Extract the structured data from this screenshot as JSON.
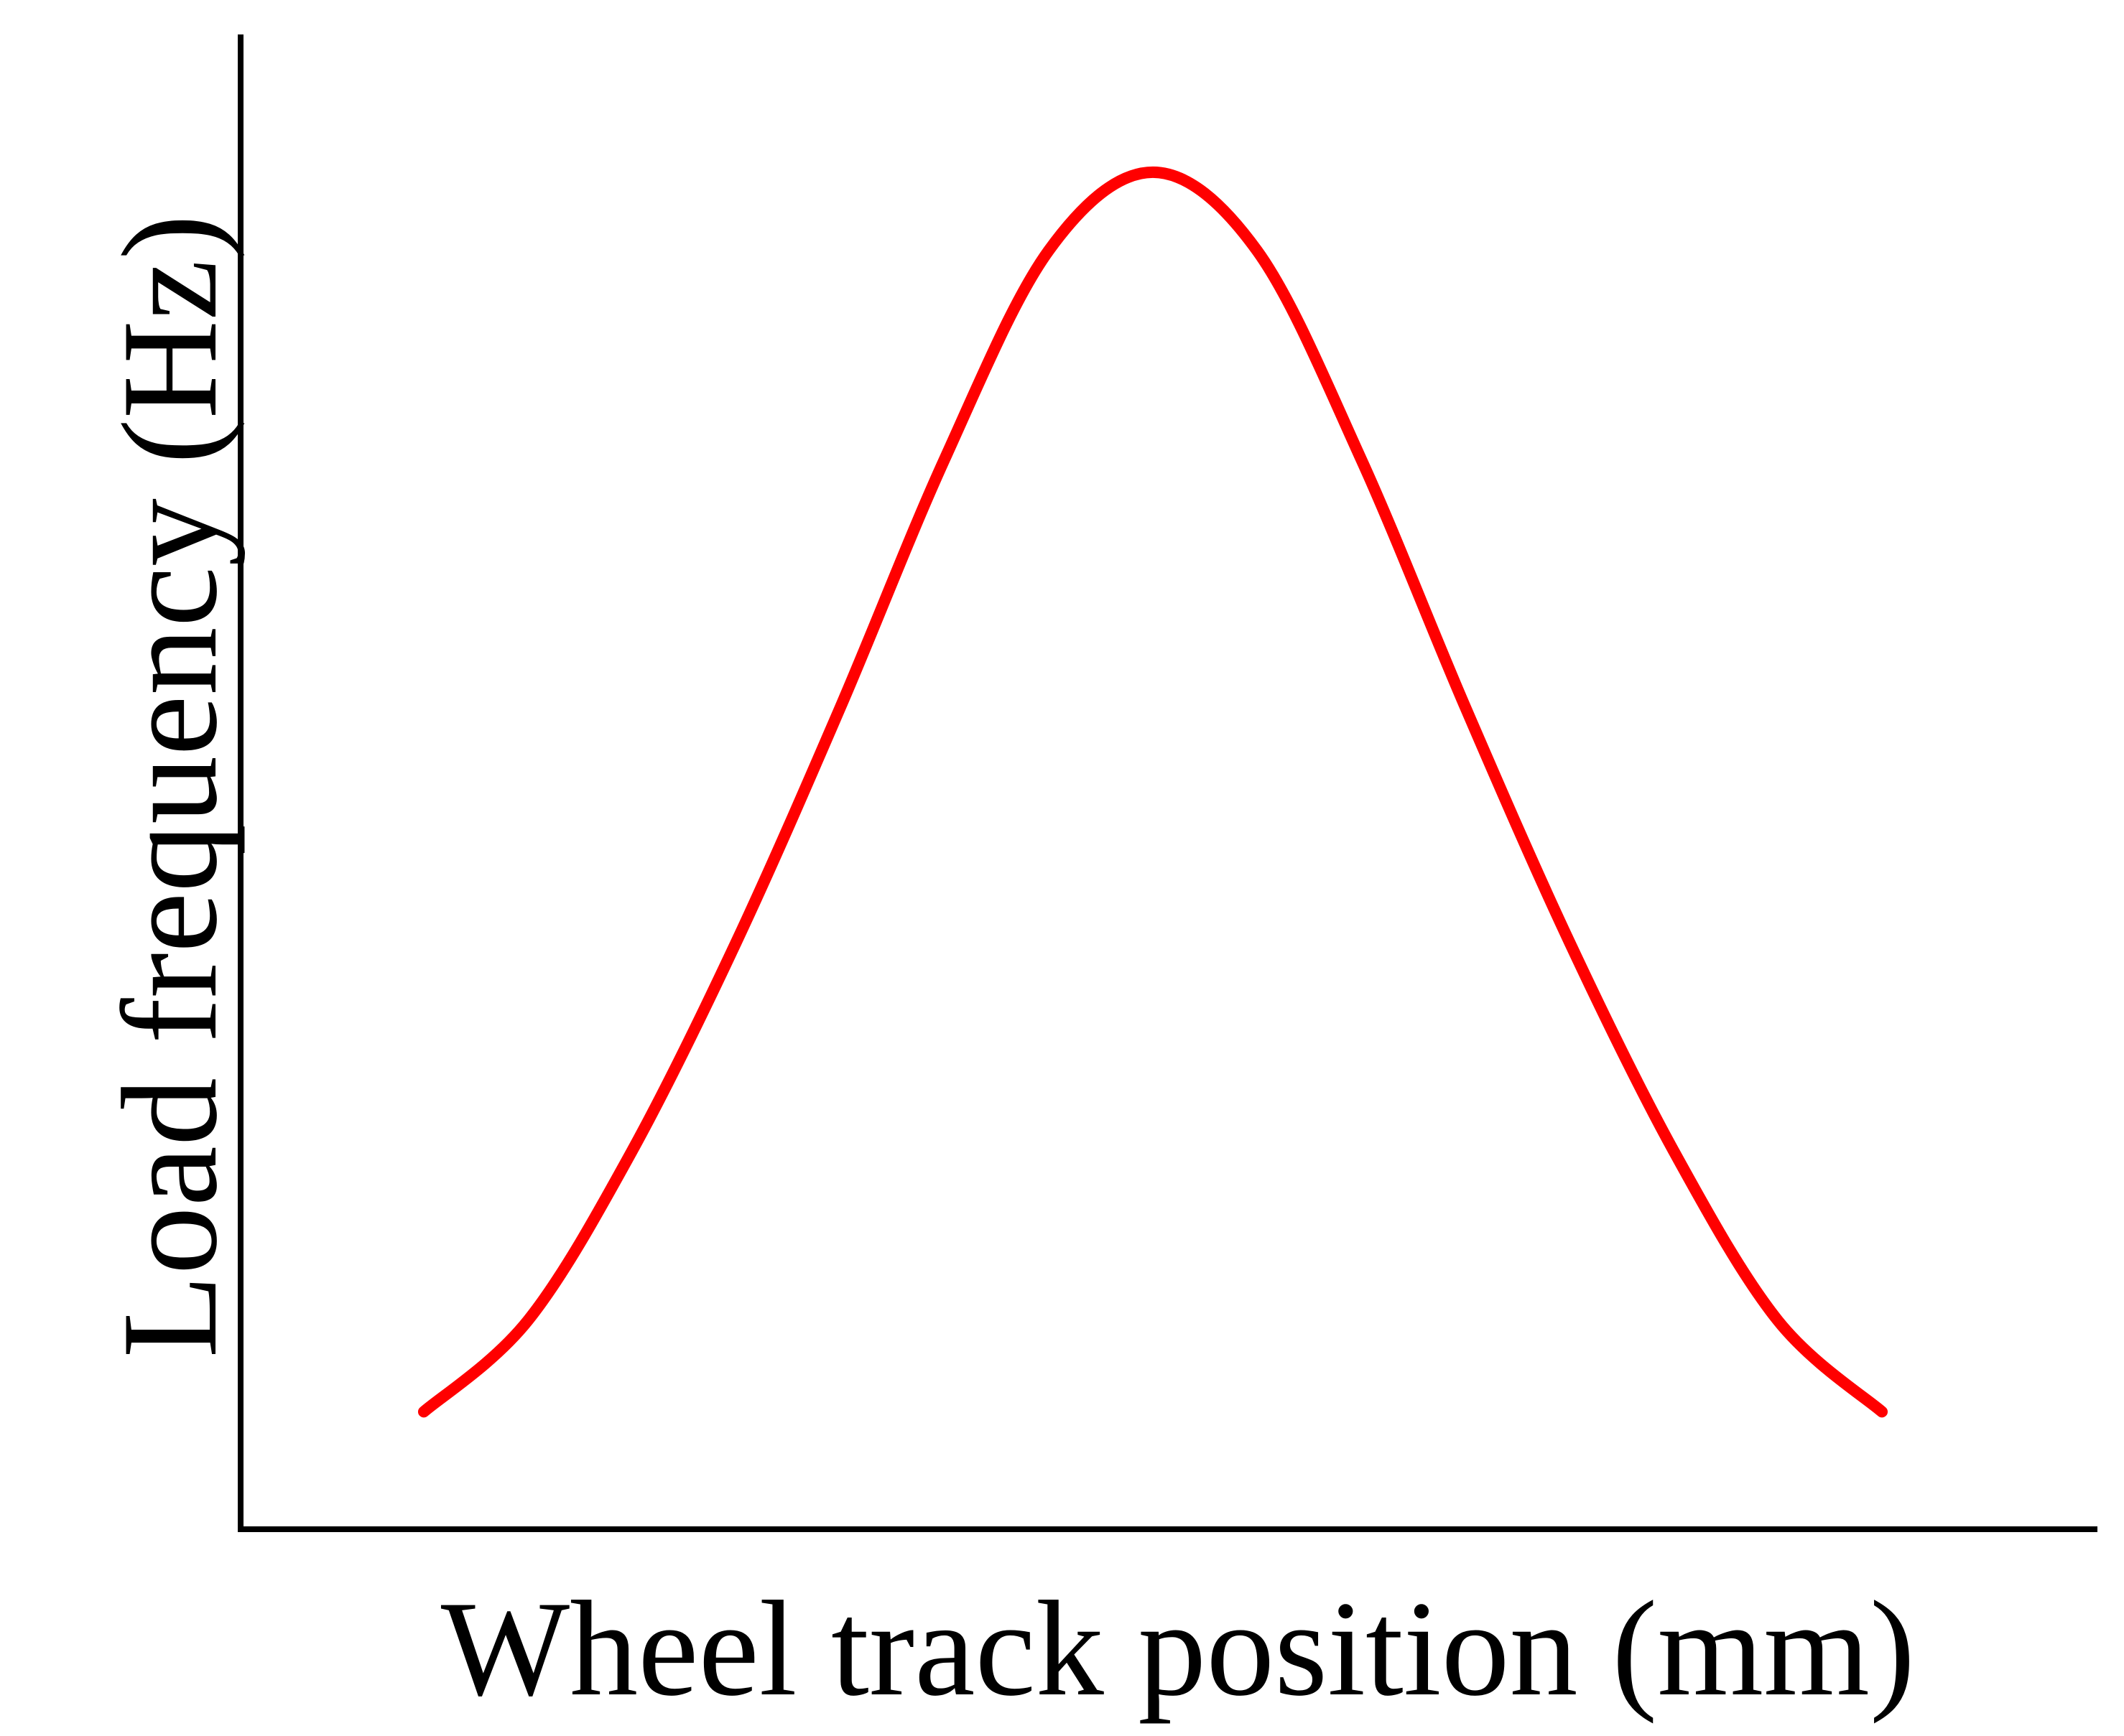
{
  "chart_data": {
    "type": "line",
    "title": "",
    "xlabel": "Wheel track position (mm)",
    "ylabel": "Load frequency (Hz)",
    "xlim": [
      -3.5,
      3.5
    ],
    "ylim": [
      0,
      1.15
    ],
    "grid": false,
    "legend": "none",
    "x_ticks_shown": false,
    "y_ticks_shown": false,
    "series": [
      {
        "color": "#ff0000",
        "x": [
          -3.5,
          -3.0,
          -2.5,
          -2.0,
          -1.5,
          -1.0,
          -0.5,
          0.0,
          0.5,
          1.0,
          1.5,
          2.0,
          2.5,
          3.0,
          3.5
        ],
        "y": [
          0.09,
          0.16,
          0.29,
          0.45,
          0.63,
          0.82,
          0.98,
          1.04,
          0.98,
          0.82,
          0.63,
          0.45,
          0.29,
          0.16,
          0.09
        ]
      }
    ]
  }
}
